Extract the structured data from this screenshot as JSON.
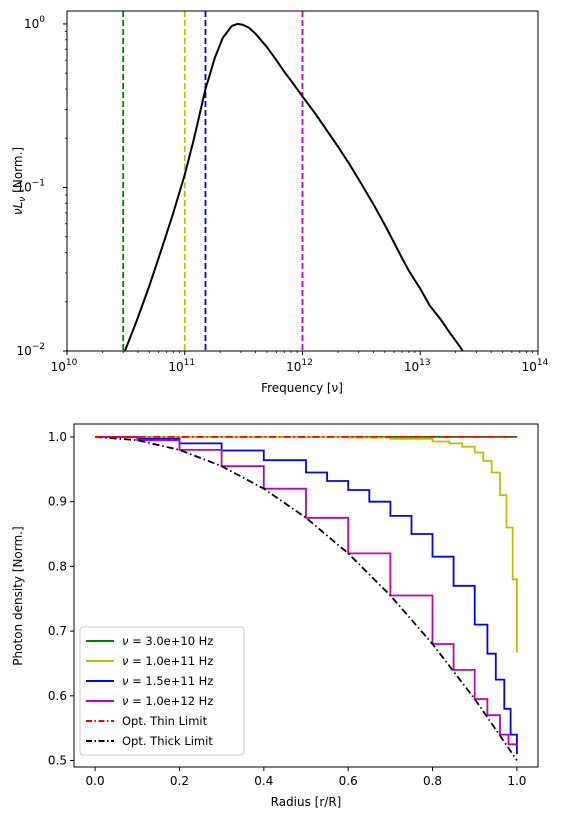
{
  "chart_data": [
    {
      "type": "line",
      "xlabel": "Frequency [ν]",
      "ylabel": "νLν [Norm.]",
      "xscale": "log",
      "yscale": "log",
      "xlim": [
        10000000000.0,
        100000000000000.0
      ],
      "ylim": [
        0.01,
        1.2
      ],
      "x_ticks": [
        {
          "value": 10000000000.0,
          "label": "10",
          "exp": "10"
        },
        {
          "value": 100000000000.0,
          "label": "10",
          "exp": "11"
        },
        {
          "value": 1000000000000.0,
          "label": "10",
          "exp": "12"
        },
        {
          "value": 10000000000000.0,
          "label": "10",
          "exp": "13"
        },
        {
          "value": 100000000000000.0,
          "label": "10",
          "exp": "14"
        }
      ],
      "y_ticks": [
        {
          "value": 0.01,
          "label": "10",
          "exp": "−2"
        },
        {
          "value": 0.1,
          "label": "10",
          "exp": "−1"
        },
        {
          "value": 1,
          "label": "10",
          "exp": "0"
        }
      ],
      "series": [
        {
          "color": "#000000",
          "style": "solid",
          "x": [
            31000000000.0,
            40000000000.0,
            50000000000.0,
            60000000000.0,
            70000000000.0,
            80000000000.0,
            100000000000.0,
            120000000000.0,
            150000000000.0,
            180000000000.0,
            210000000000.0,
            250000000000.0,
            280000000000.0,
            310000000000.0,
            350000000000.0,
            400000000000.0,
            500000000000.0,
            600000000000.0,
            700000000000.0,
            800000000000.0,
            1000000000000.0,
            1300000000000.0,
            1600000000000.0,
            2000000000000.0,
            2500000000000.0,
            3000000000000.0,
            4000000000000.0,
            5000000000000.0,
            6000000000000.0,
            7000000000000.0,
            8000000000000.0,
            10000000000000.0,
            12000000000000.0,
            15000000000000.0,
            18000000000000.0,
            21000000000000.0,
            23000000000000.0
          ],
          "y": [
            0.01,
            0.016,
            0.025,
            0.037,
            0.052,
            0.07,
            0.12,
            0.2,
            0.4,
            0.62,
            0.82,
            0.97,
            1.0,
            0.99,
            0.95,
            0.87,
            0.72,
            0.6,
            0.51,
            0.45,
            0.36,
            0.28,
            0.225,
            0.178,
            0.139,
            0.112,
            0.079,
            0.059,
            0.046,
            0.037,
            0.031,
            0.024,
            0.019,
            0.0155,
            0.0128,
            0.011,
            0.01
          ]
        }
      ],
      "vlines": [
        {
          "x": 30000000000.0,
          "color": "#008000",
          "style": "dashed"
        },
        {
          "x": 100000000000.0,
          "color": "#bfbf00",
          "style": "dashed"
        },
        {
          "x": 150000000000.0,
          "color": "#0000ff",
          "style": "dashed"
        },
        {
          "x": 1000000000000.0,
          "color": "#bf00bf",
          "style": "dashed"
        }
      ],
      "grid": false
    },
    {
      "type": "line",
      "xlabel": "Radius [r/R]",
      "ylabel": "Photon density [Norm.]",
      "xlim": [
        -0.05,
        1.05
      ],
      "ylim": [
        0.49,
        1.02
      ],
      "x_ticks": [
        0.0,
        0.2,
        0.4,
        0.6,
        0.8,
        1.0
      ],
      "x_tick_labels": [
        "0.0",
        "0.2",
        "0.4",
        "0.6",
        "0.8",
        "1.0"
      ],
      "y_ticks": [
        0.5,
        0.6,
        0.7,
        0.8,
        0.9,
        1.0
      ],
      "y_tick_labels": [
        "0.5",
        "0.6",
        "0.7",
        "0.8",
        "0.9",
        "1.0"
      ],
      "legend": {
        "placement": "lower-left",
        "entries": [
          {
            "text": "ν = 3.0e+10 Hz",
            "color": "#008000",
            "style": "solid"
          },
          {
            "text": "ν = 1.0e+11 Hz",
            "color": "#bfbf00",
            "style": "solid"
          },
          {
            "text": "ν = 1.5e+11 Hz",
            "color": "#0000ff",
            "style": "solid"
          },
          {
            "text": "ν = 1.0e+12 Hz",
            "color": "#bf00bf",
            "style": "solid"
          },
          {
            "text": "Opt. Thin Limit",
            "color": "#ff0000",
            "style": "dashdot"
          },
          {
            "text": "Opt. Thick Limit",
            "color": "#000000",
            "style": "dashdot"
          }
        ]
      },
      "series": [
        {
          "label": "ν = 3.0e+10 Hz",
          "color": "#008000",
          "style": "step",
          "x": [
            0.0,
            0.5,
            1.0
          ],
          "y": [
            1.0,
            1.0,
            1.0
          ]
        },
        {
          "label": "ν = 1.0e+11 Hz",
          "color": "#bfbf00",
          "style": "step",
          "x": [
            0.0,
            0.6,
            0.7,
            0.8,
            0.84,
            0.87,
            0.9,
            0.92,
            0.94,
            0.96,
            0.975,
            0.99,
            1.0
          ],
          "y": [
            1.0,
            0.999,
            0.997,
            0.993,
            0.99,
            0.985,
            0.976,
            0.963,
            0.945,
            0.91,
            0.86,
            0.78,
            0.667
          ]
        },
        {
          "label": "ν = 1.5e+11 Hz",
          "color": "#0000ff",
          "style": "step",
          "x": [
            0.0,
            0.1,
            0.2,
            0.3,
            0.4,
            0.5,
            0.55,
            0.6,
            0.65,
            0.7,
            0.75,
            0.8,
            0.85,
            0.9,
            0.93,
            0.95,
            0.97,
            0.985,
            1.0
          ],
          "y": [
            1.0,
            0.997,
            0.99,
            0.979,
            0.964,
            0.945,
            0.932,
            0.918,
            0.9,
            0.878,
            0.85,
            0.815,
            0.77,
            0.71,
            0.665,
            0.625,
            0.58,
            0.54,
            0.51
          ]
        },
        {
          "label": "ν = 1.0e+12 Hz",
          "color": "#bf00bf",
          "style": "step",
          "x": [
            0.0,
            0.1,
            0.2,
            0.3,
            0.4,
            0.5,
            0.6,
            0.7,
            0.8,
            0.85,
            0.9,
            0.93,
            0.96,
            0.98,
            1.0
          ],
          "y": [
            1.0,
            0.995,
            0.98,
            0.955,
            0.92,
            0.875,
            0.82,
            0.755,
            0.68,
            0.64,
            0.595,
            0.57,
            0.54,
            0.525,
            0.525
          ]
        },
        {
          "label": "Opt. Thin Limit",
          "color": "#ff0000",
          "style": "dashdot",
          "x": [
            0.0,
            1.0
          ],
          "y": [
            1.0,
            1.0
          ]
        },
        {
          "label": "Opt. Thick Limit",
          "color": "#000000",
          "style": "dashdot",
          "x": [
            0.0,
            0.1,
            0.2,
            0.3,
            0.4,
            0.5,
            0.6,
            0.7,
            0.8,
            0.9,
            0.95,
            1.0
          ],
          "y": [
            1.0,
            0.995,
            0.98,
            0.955,
            0.92,
            0.875,
            0.82,
            0.755,
            0.68,
            0.595,
            0.548,
            0.5
          ]
        }
      ],
      "grid": false
    }
  ]
}
